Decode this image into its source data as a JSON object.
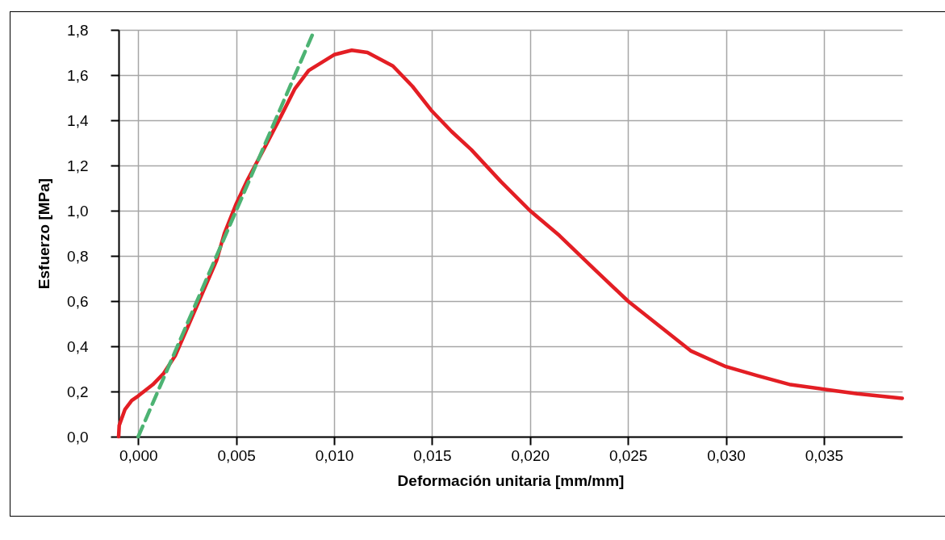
{
  "chart_data": {
    "type": "line",
    "xlabel": "Deformación unitaria [mm/mm]",
    "ylabel": "Esfuerzo [MPa]",
    "xlim": [
      -0.001,
      0.039
    ],
    "ylim": [
      0,
      1.8
    ],
    "xticks": [
      {
        "value": 0,
        "label": "0,000"
      },
      {
        "value": 0.005,
        "label": "0,005"
      },
      {
        "value": 0.01,
        "label": "0,010"
      },
      {
        "value": 0.015,
        "label": "0,015"
      },
      {
        "value": 0.02,
        "label": "0,020"
      },
      {
        "value": 0.025,
        "label": "0,025"
      },
      {
        "value": 0.03,
        "label": "0,030"
      },
      {
        "value": 0.035,
        "label": "0,035"
      }
    ],
    "yticks": [
      {
        "value": 0,
        "label": "0,0"
      },
      {
        "value": 0.2,
        "label": "0,2"
      },
      {
        "value": 0.4,
        "label": "0,4"
      },
      {
        "value": 0.6,
        "label": "0,6"
      },
      {
        "value": 0.8,
        "label": "0,8"
      },
      {
        "value": 1,
        "label": "1,0"
      },
      {
        "value": 1.2,
        "label": "1,2"
      },
      {
        "value": 1.4,
        "label": "1,4"
      },
      {
        "value": 1.6,
        "label": "1,6"
      },
      {
        "value": 1.8,
        "label": "1,8"
      }
    ],
    "grid": true,
    "marker": "none",
    "series": [
      {
        "type": "line",
        "color": "#e31e24",
        "line_style": "solid",
        "x": [
          -0.001,
          -0.00097,
          -0.00068,
          -0.00033,
          0,
          0.00074,
          0.0013,
          0.0019,
          0.0026,
          0.0033,
          0.004,
          0.0044,
          0.005,
          0.0056,
          0.0064,
          0.0073,
          0.008,
          0.0087,
          0.01,
          0.0109,
          0.0117,
          0.013,
          0.014,
          0.015,
          0.016,
          0.017,
          0.0185,
          0.02,
          0.0215,
          0.0233,
          0.025,
          0.0266,
          0.0282,
          0.03,
          0.0316,
          0.0333,
          0.035,
          0.0367,
          0.039
        ],
        "values": [
          0,
          0.05,
          0.12,
          0.16,
          0.18,
          0.23,
          0.28,
          0.36,
          0.5,
          0.64,
          0.78,
          0.9,
          1.03,
          1.14,
          1.27,
          1.42,
          1.54,
          1.62,
          1.69,
          1.71,
          1.7,
          1.64,
          1.55,
          1.44,
          1.35,
          1.27,
          1.13,
          1.0,
          0.89,
          0.74,
          0.6,
          0.49,
          0.38,
          0.31,
          0.27,
          0.23,
          0.21,
          0.19,
          0.17
        ]
      },
      {
        "type": "line",
        "color": "#4db373",
        "line_style": "dashed",
        "x": [
          0,
          0.009
        ],
        "values": [
          0,
          1.8
        ]
      }
    ]
  }
}
